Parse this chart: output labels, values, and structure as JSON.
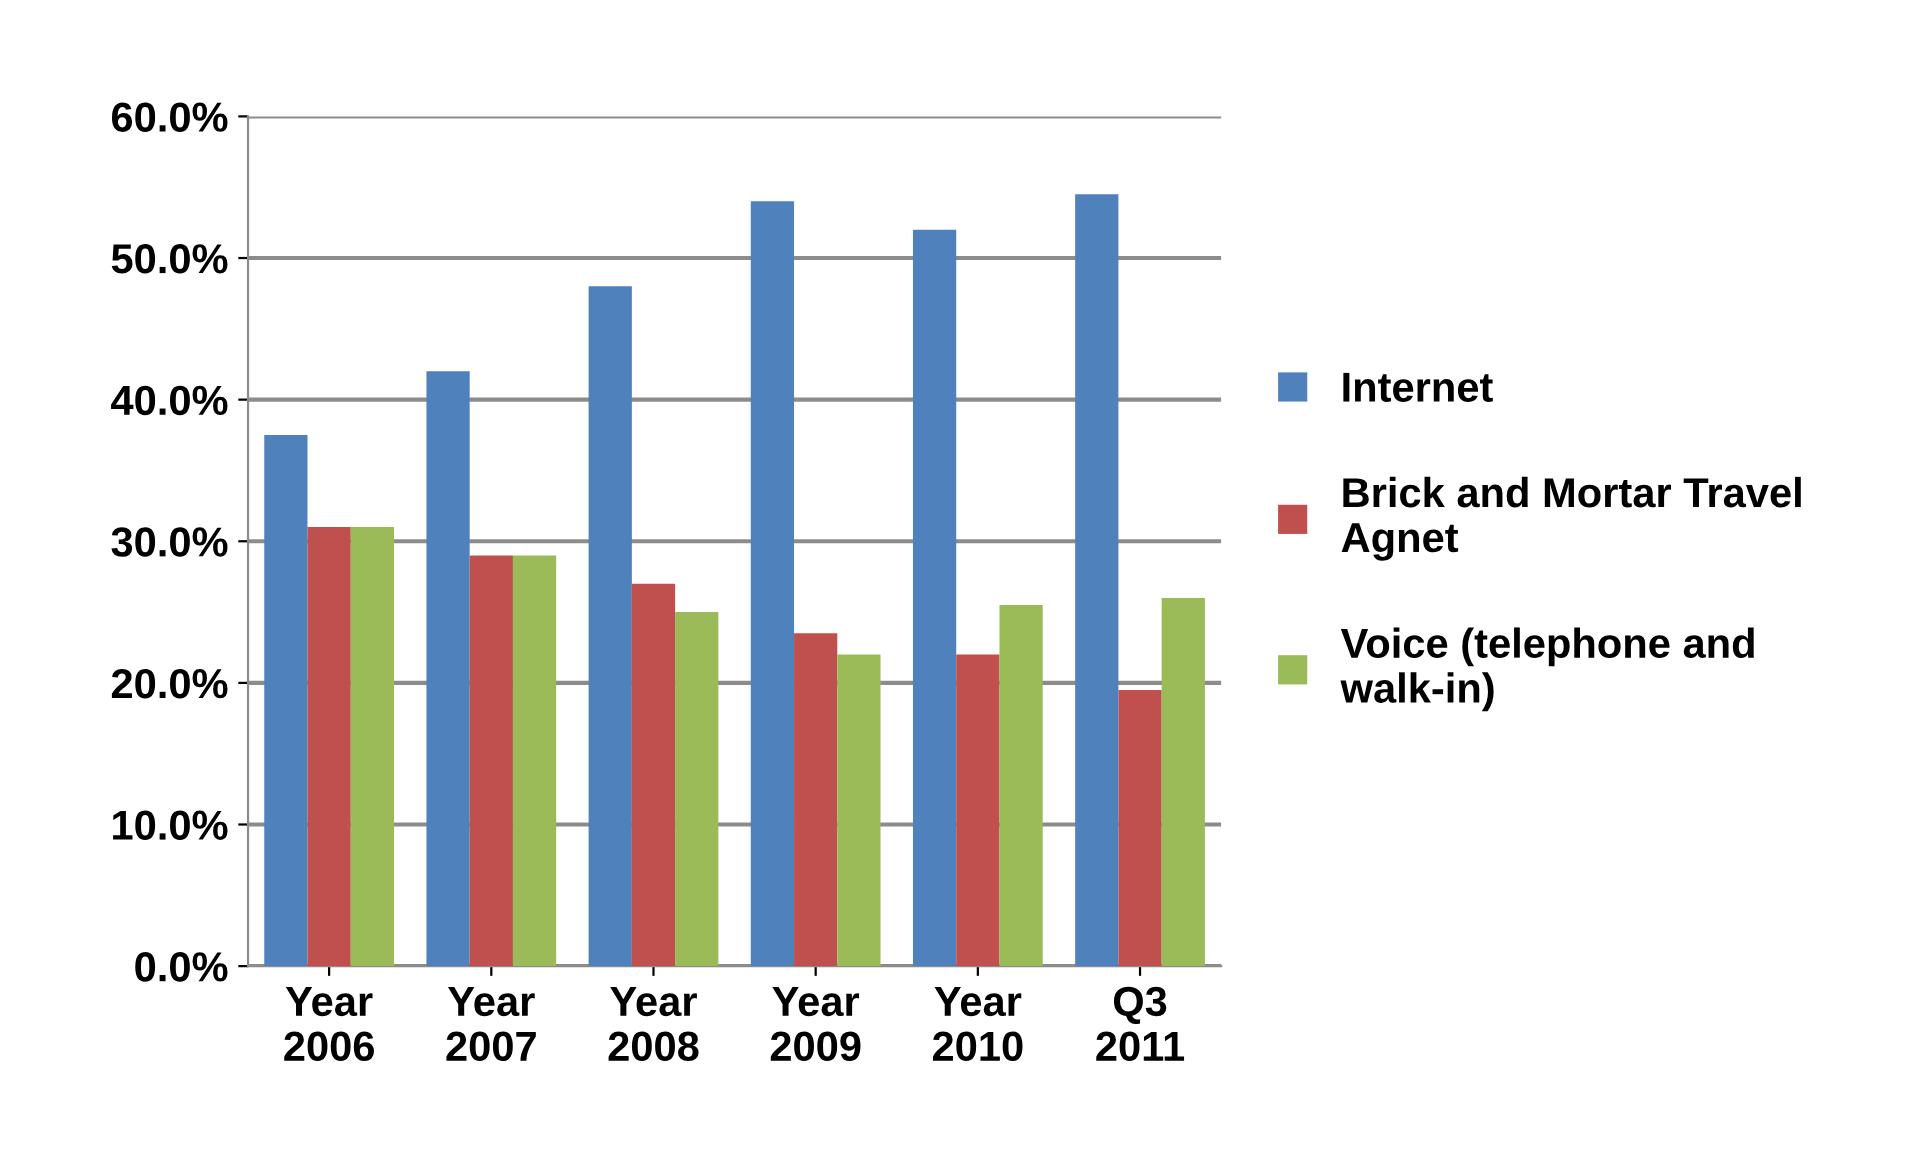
{
  "chart_data": {
    "type": "bar",
    "categories": [
      "Year\n2006",
      "Year\n2007",
      "Year\n2008",
      "Year\n2009",
      "Year\n2010",
      "Q3\n2011"
    ],
    "series": [
      {
        "name": "Internet",
        "color": "#4f81bd",
        "values": [
          37.5,
          42,
          48,
          54,
          52,
          54.5
        ]
      },
      {
        "name": "Brick and Mortar Travel\nAgnet",
        "color": "#c0504d",
        "values": [
          31,
          29,
          27,
          23.5,
          22,
          19.5
        ]
      },
      {
        "name": "Voice (telephone and\nwalk-in)",
        "color": "#9bbb59",
        "values": [
          31,
          29,
          25,
          22,
          25.5,
          26
        ]
      }
    ],
    "ylim": [
      0,
      60
    ],
    "yticks": [
      {
        "value": 0,
        "label": "0.0%"
      },
      {
        "value": 10,
        "label": "10.0%"
      },
      {
        "value": 20,
        "label": "20.0%"
      },
      {
        "value": 30,
        "label": "30.0%"
      },
      {
        "value": 40,
        "label": "40.0%"
      },
      {
        "value": 50,
        "label": "50.0%"
      },
      {
        "value": 60,
        "label": "60.0%"
      }
    ],
    "grid": "y",
    "legend": "right"
  }
}
